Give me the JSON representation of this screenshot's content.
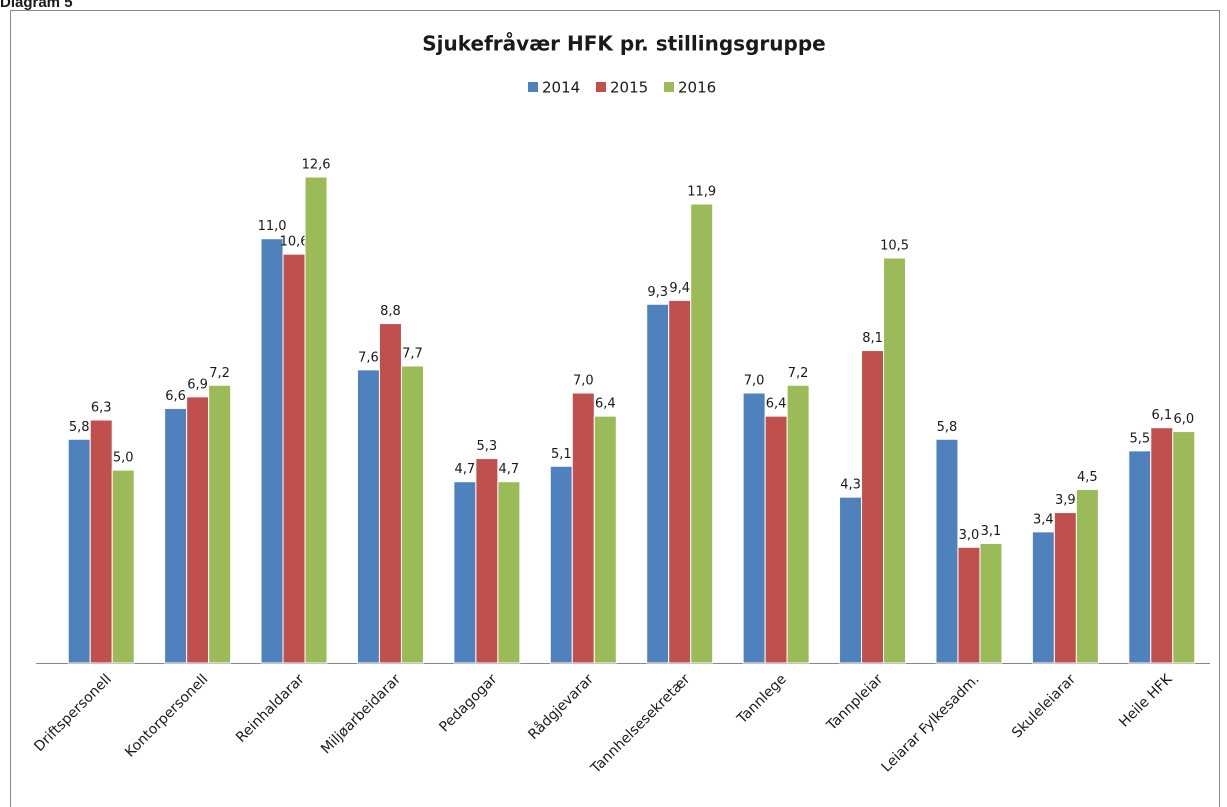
{
  "caption": "Diagram 5",
  "chart_data": {
    "type": "bar",
    "title": "Sjukefråvær HFK pr. stillingsgruppe",
    "categories": [
      "Driftspersonell",
      "Kontorpersonell",
      "Reinhaldarar",
      "Miljøarbeidarar",
      "Pedagogar",
      "Rådgjevarar",
      "Tannhelsesekretær",
      "Tannlege",
      "Tannpleiar",
      "Leiarar Fylkesadm.",
      "Skuleleiarar",
      "Heile HFK"
    ],
    "ylim": [
      0,
      14
    ],
    "series": [
      {
        "name": "2014",
        "color": "#4f81bd",
        "values": [
          5.8,
          6.6,
          11.0,
          7.6,
          4.7,
          5.1,
          9.3,
          7.0,
          4.3,
          5.8,
          3.4,
          5.5
        ],
        "value_labels": [
          "5,8",
          "6,6",
          "11,0",
          "7,6",
          "4,7",
          "5,1",
          "9,3",
          "7,0",
          "4,3",
          "5,8",
          "3,4",
          "5,5"
        ]
      },
      {
        "name": "2015",
        "color": "#c0504d",
        "values": [
          6.3,
          6.9,
          10.6,
          8.8,
          5.3,
          7.0,
          9.4,
          6.4,
          8.1,
          3.0,
          3.9,
          6.1
        ],
        "value_labels": [
          "6,3",
          "6,9",
          "10,6",
          "8,8",
          "5,3",
          "7,0",
          "9,4",
          "6,4",
          "8,1",
          "3,0",
          "3,9",
          "6,1"
        ]
      },
      {
        "name": "2016",
        "color": "#9bbb59",
        "values": [
          5.0,
          7.2,
          12.6,
          7.7,
          4.7,
          6.4,
          11.9,
          7.2,
          10.5,
          3.1,
          4.5,
          6.0
        ],
        "value_labels": [
          "5,0",
          "7,2",
          "12,6",
          "7,7",
          "4,7",
          "6,4",
          "11,9",
          "7,2",
          "10,5",
          "3,1",
          "4,5",
          "6,0"
        ]
      }
    ]
  }
}
